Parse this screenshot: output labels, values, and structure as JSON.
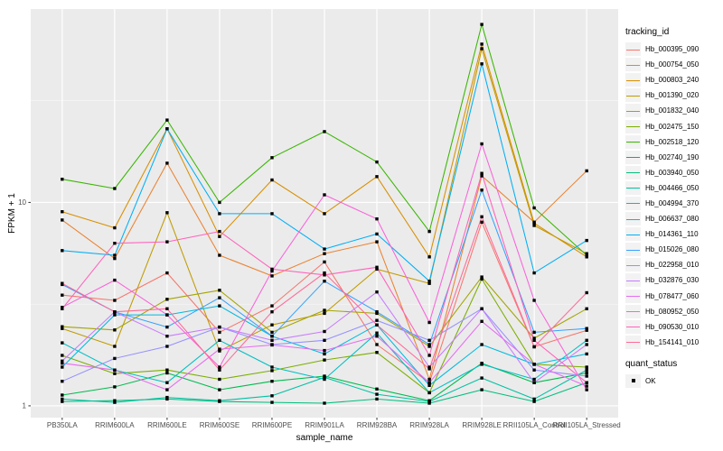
{
  "legend": {
    "tracking_title": "tracking_id",
    "quant_title": "quant_status",
    "quant_items": [
      "OK"
    ]
  },
  "chart_data": {
    "type": "line",
    "title": "",
    "xlabel": "sample_name",
    "ylabel": "FPKM + 1",
    "y_scale": "log10",
    "y_ticks": [
      1,
      10
    ],
    "y_tick_labels": [
      "1",
      "10"
    ],
    "y_minor_ticks": [
      3.1623,
      31.623
    ],
    "ylim": [
      0.875,
      89.3
    ],
    "grid": true,
    "legend_position": "right",
    "panel_bg": "#EBEBEB",
    "marker": "black-square",
    "quant_status": {
      "label": "OK",
      "marker": "black-square"
    },
    "categories": [
      "PB350LA",
      "RRIM600LA",
      "RRIM600LE",
      "RRIM600SE",
      "RRIM600PE",
      "RRIM901LA",
      "RRIM928BA",
      "RRIM928LA",
      "RRIM928LE",
      "RRII105LA_Control",
      "RRII105LA_Stressed"
    ],
    "series": [
      {
        "name": "Hb_000395_090",
        "color": "#F8766D",
        "values": [
          3.5,
          3.3,
          4.5,
          2.3,
          3.1,
          5.1,
          2.0,
          1.3,
          8.0,
          1.95,
          2.35
        ]
      },
      {
        "name": "Hb_000754_050",
        "color": "#EA8331",
        "values": [
          8.2,
          5.3,
          15.6,
          5.5,
          4.35,
          5.6,
          6.4,
          1.35,
          13.5,
          8.0,
          14.3
        ]
      },
      {
        "name": "Hb_000803_240",
        "color": "#D89000",
        "values": [
          9.0,
          7.5,
          23.0,
          6.8,
          12.9,
          8.8,
          13.4,
          5.4,
          60.0,
          7.9,
          5.4
        ]
      },
      {
        "name": "Hb_001390_020",
        "color": "#C09B00",
        "values": [
          2.4,
          1.96,
          8.9,
          1.86,
          2.5,
          2.85,
          4.7,
          4.0,
          57.0,
          7.7,
          5.6
        ]
      },
      {
        "name": "Hb_001832_040",
        "color": "#A3A500",
        "values": [
          2.45,
          2.36,
          3.34,
          3.7,
          2.3,
          2.95,
          2.85,
          1.96,
          4.3,
          2.15,
          3.0
        ]
      },
      {
        "name": "Hb_002475_150",
        "color": "#7CAE00",
        "values": [
          1.77,
          1.44,
          1.5,
          1.35,
          1.49,
          1.68,
          1.83,
          1.16,
          4.2,
          1.6,
          1.55
        ]
      },
      {
        "name": "Hb_002518_120",
        "color": "#39B600",
        "values": [
          13.0,
          11.7,
          25.4,
          10.0,
          16.6,
          22.3,
          15.8,
          7.2,
          75.0,
          9.4,
          5.5
        ]
      },
      {
        "name": "Hb_002740_190",
        "color": "#00BB4E",
        "values": [
          1.13,
          1.24,
          1.45,
          1.2,
          1.32,
          1.4,
          1.21,
          1.06,
          1.62,
          1.3,
          1.45
        ]
      },
      {
        "name": "Hb_003940_050",
        "color": "#00BF7D",
        "values": [
          1.05,
          1.06,
          1.08,
          1.05,
          1.04,
          1.03,
          1.08,
          1.03,
          1.2,
          1.05,
          1.3
        ]
      },
      {
        "name": "Hb_004466_050",
        "color": "#00C1A3",
        "values": [
          1.08,
          1.04,
          1.1,
          1.06,
          1.12,
          1.38,
          1.14,
          1.05,
          1.37,
          1.08,
          1.5
        ]
      },
      {
        "name": "Hb_004994_370",
        "color": "#00BFC4",
        "values": [
          2.04,
          1.5,
          1.3,
          2.1,
          1.55,
          1.35,
          2.28,
          1.16,
          1.6,
          1.35,
          2.1
        ]
      },
      {
        "name": "Hb_006637_080",
        "color": "#00BAE0",
        "values": [
          1.55,
          2.8,
          2.8,
          3.1,
          2.2,
          1.8,
          2.5,
          1.26,
          2.0,
          1.6,
          1.8
        ]
      },
      {
        "name": "Hb_014361_110",
        "color": "#00B0F6",
        "values": [
          5.8,
          5.5,
          23.0,
          8.8,
          8.8,
          5.9,
          7.0,
          4.1,
          48.0,
          4.5,
          6.5
        ]
      },
      {
        "name": "Hb_015026_080",
        "color": "#35A2FF",
        "values": [
          3.95,
          2.9,
          2.44,
          3.4,
          2.2,
          4.1,
          2.9,
          2.0,
          11.5,
          2.3,
          2.4
        ]
      },
      {
        "name": "Hb_022958_010",
        "color": "#9590FF",
        "values": [
          1.32,
          1.71,
          1.96,
          2.44,
          2.0,
          2.1,
          2.63,
          2.1,
          3.0,
          1.5,
          1.4
        ]
      },
      {
        "name": "Hb_032876_030",
        "color": "#C77CFF",
        "values": [
          1.66,
          2.9,
          2.2,
          2.44,
          2.1,
          2.32,
          3.63,
          1.55,
          3.0,
          1.3,
          2.0
        ]
      },
      {
        "name": "Hb_078477_060",
        "color": "#E76BF3",
        "values": [
          1.62,
          1.5,
          1.2,
          1.9,
          1.99,
          1.87,
          2.2,
          1.3,
          2.6,
          1.6,
          1.25
        ]
      },
      {
        "name": "Hb_080952_050",
        "color": "#FA62DB",
        "values": [
          3.05,
          4.15,
          2.8,
          1.55,
          4.6,
          10.9,
          8.3,
          2.57,
          19.4,
          3.3,
          1.2
        ]
      },
      {
        "name": "Hb_090530_010",
        "color": "#FF62BC",
        "values": [
          3.0,
          6.3,
          6.4,
          7.2,
          4.7,
          4.4,
          4.8,
          1.77,
          13.9,
          2.1,
          1.3
        ]
      },
      {
        "name": "Hb_154141_010",
        "color": "#FF6A98",
        "values": [
          4.0,
          2.9,
          3.0,
          1.5,
          2.9,
          4.5,
          2.5,
          1.52,
          8.5,
          1.95,
          3.6
        ]
      }
    ]
  }
}
